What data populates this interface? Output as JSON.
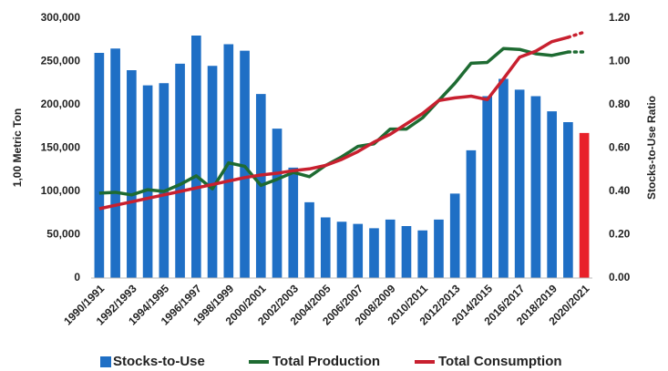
{
  "chart_data": {
    "type": "bar_line",
    "categories": [
      "1990/1991",
      null,
      "1992/1993",
      null,
      "1994/1995",
      null,
      "1996/1997",
      null,
      "1998/1999",
      null,
      "2000/2001",
      null,
      "2002/2003",
      null,
      "2004/2005",
      null,
      "2006/2007",
      null,
      "2008/2009",
      null,
      "2010/2011",
      null,
      "2012/2013",
      null,
      "2014/2015",
      null,
      "2016/2017",
      null,
      "2018/2019",
      null,
      "2020/2021"
    ],
    "y_label": "1,00 Metric Ton",
    "y2_label": "Stocks-to-Use Ratio",
    "ylim": [
      0,
      300000
    ],
    "yticks": [
      0,
      {
        "value": 50000,
        "label": "50,000"
      },
      {
        "value": 100000,
        "label": "100,000"
      },
      {
        "value": 150000,
        "label": "150,000"
      },
      {
        "value": 200000,
        "label": "200,000"
      },
      {
        "value": 250000,
        "label": "250,000"
      },
      {
        "value": 300000,
        "label": "300,000"
      }
    ],
    "y2lim": [
      0,
      1.2
    ],
    "y2ticks": [
      {
        "value": 0,
        "label": "0.00"
      },
      {
        "value": 0.2,
        "label": "0.20"
      },
      {
        "value": 0.4,
        "label": "0.40"
      },
      {
        "value": 0.6,
        "label": "0.60"
      },
      {
        "value": 0.8,
        "label": "0.80"
      },
      {
        "value": 1,
        "label": "1.00"
      },
      {
        "value": 1.2,
        "label": "1.20"
      }
    ],
    "series": [
      {
        "name": "Stocks-to-Use",
        "kind": "bar",
        "axis": "y2",
        "color": "#1f6fc5",
        "highlight_color": "#e8212a",
        "highlight_last": true,
        "values": [
          1.04,
          1.06,
          0.96,
          0.89,
          0.9,
          0.99,
          1.12,
          0.98,
          1.08,
          1.05,
          0.85,
          0.69,
          0.51,
          0.35,
          0.28,
          0.26,
          0.25,
          0.23,
          0.27,
          0.24,
          0.22,
          0.27,
          0.39,
          0.59,
          0.84,
          0.92,
          0.87,
          0.84,
          0.77,
          0.72,
          0.67
        ]
      },
      {
        "name": "Total Production",
        "kind": "line",
        "color": "#1e6b32",
        "values": [
          98000,
          99000,
          96000,
          102000,
          100000,
          108000,
          118000,
          103000,
          133000,
          129000,
          107000,
          114000,
          122000,
          117000,
          130000,
          140000,
          152000,
          155000,
          172000,
          172000,
          185000,
          205000,
          225000,
          248000,
          249000,
          265000,
          264000,
          259000,
          257000,
          261000,
          261000
        ]
      },
      {
        "name": "Total Consumption",
        "kind": "line",
        "color": "#c8202f",
        "values": [
          80000,
          84000,
          88000,
          92000,
          96000,
          100000,
          104000,
          108000,
          112000,
          116000,
          119000,
          121000,
          124000,
          126000,
          130000,
          137000,
          146000,
          157000,
          166000,
          178000,
          190000,
          205000,
          208000,
          210000,
          206000,
          230000,
          255000,
          262000,
          273000,
          278000,
          284000
        ]
      }
    ]
  }
}
